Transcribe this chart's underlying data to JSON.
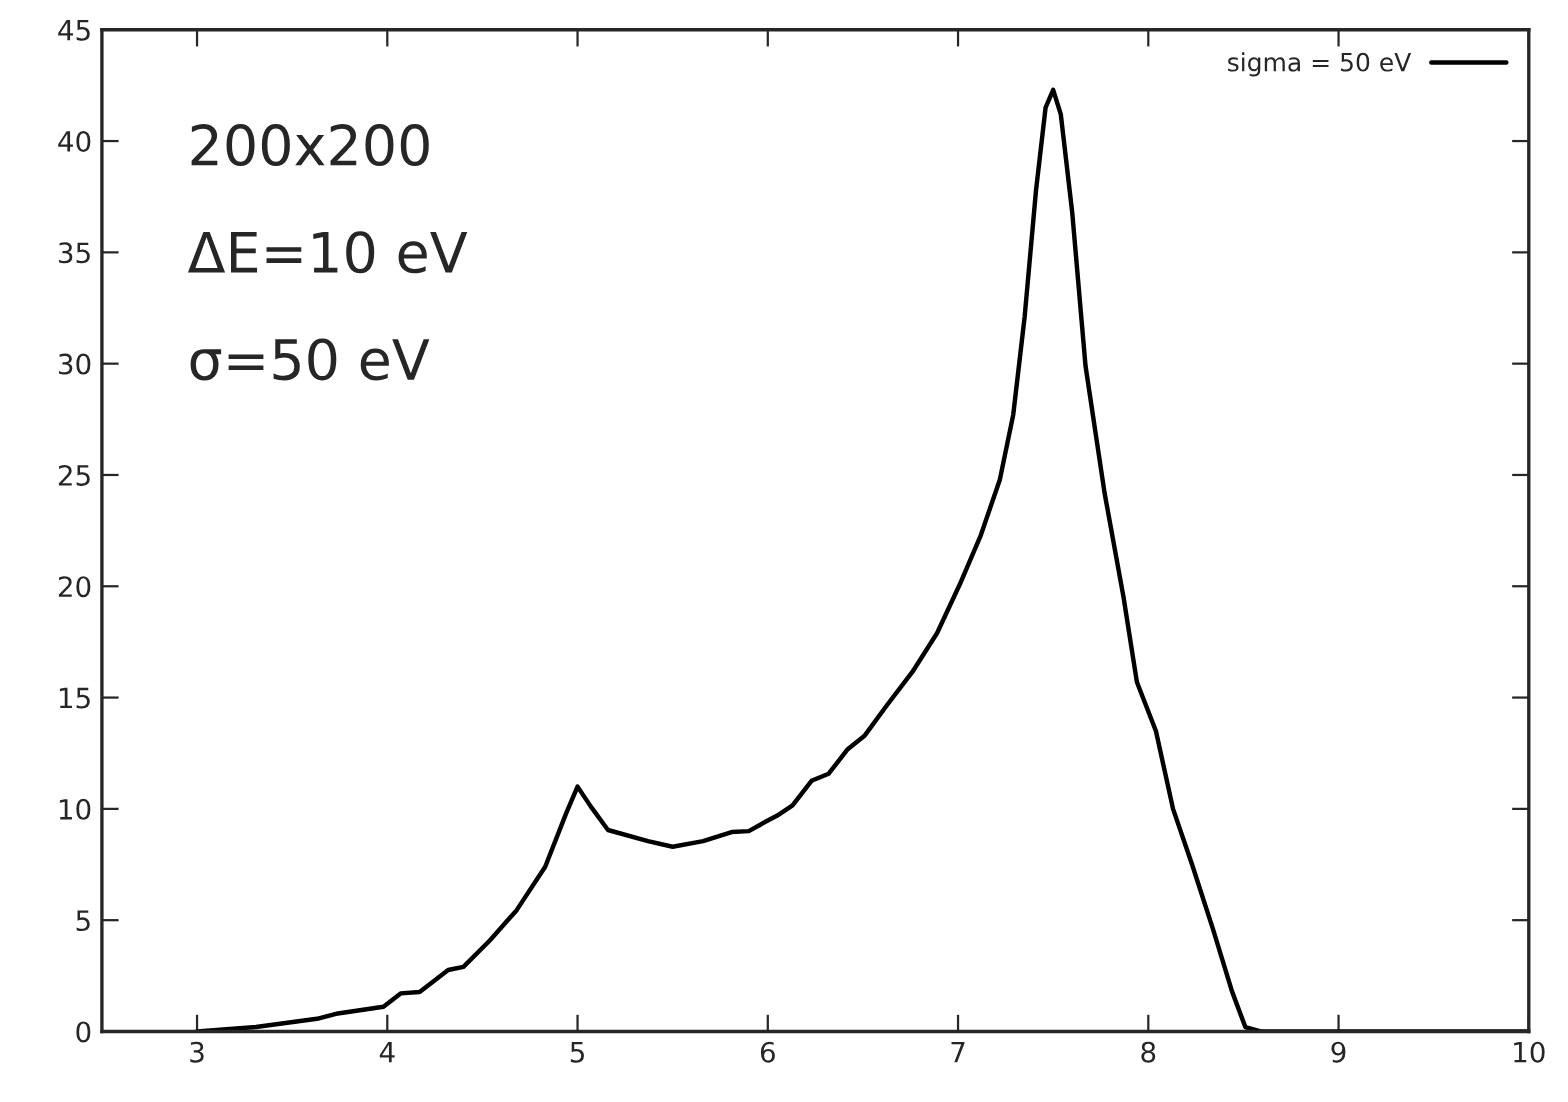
{
  "chart_data": {
    "type": "line",
    "x": [
      3.0,
      3.31,
      3.63,
      3.74,
      3.98,
      4.07,
      4.17,
      4.32,
      4.4,
      4.54,
      4.68,
      4.83,
      4.94,
      5.0,
      5.07,
      5.16,
      5.37,
      5.5,
      5.66,
      5.81,
      5.9,
      5.99,
      6.05,
      6.13,
      6.23,
      6.32,
      6.42,
      6.51,
      6.63,
      6.76,
      6.89,
      7.01,
      7.12,
      7.22,
      7.29,
      7.35,
      7.41,
      7.46,
      7.5,
      7.54,
      7.6,
      7.67,
      7.77,
      7.87,
      7.94,
      8.04,
      8.13,
      8.23,
      8.34,
      8.44,
      8.51,
      8.59,
      10.0
    ],
    "series": [
      {
        "name": "sigma = 50 eV",
        "color": "#000000",
        "values": [
          0,
          0.2,
          0.57,
          0.81,
          1.11,
          1.71,
          1.77,
          2.76,
          2.9,
          4.1,
          5.45,
          7.4,
          9.8,
          11.0,
          10.1,
          9.05,
          8.55,
          8.3,
          8.55,
          8.96,
          9.0,
          9.43,
          9.7,
          10.16,
          11.26,
          11.58,
          12.68,
          13.3,
          14.7,
          16.15,
          17.9,
          20.1,
          22.3,
          24.8,
          27.7,
          32.1,
          37.8,
          41.5,
          42.3,
          41.2,
          36.8,
          29.9,
          24.2,
          19.5,
          15.7,
          13.5,
          10.0,
          7.5,
          4.6,
          1.8,
          0.2,
          0,
          0
        ]
      }
    ],
    "xlim": [
      2.5,
      10
    ],
    "ylim": [
      0,
      45
    ],
    "xticks": [
      3,
      4,
      5,
      6,
      7,
      8,
      9,
      10
    ],
    "yticks": [
      0,
      5,
      10,
      15,
      20,
      25,
      30,
      35,
      40,
      45
    ],
    "grid": false,
    "legend": "top right",
    "marker": "none",
    "line_style": "solid",
    "annotations": [
      "200x200",
      "ΔE=10 eV",
      "σ=50 eV"
    ]
  }
}
